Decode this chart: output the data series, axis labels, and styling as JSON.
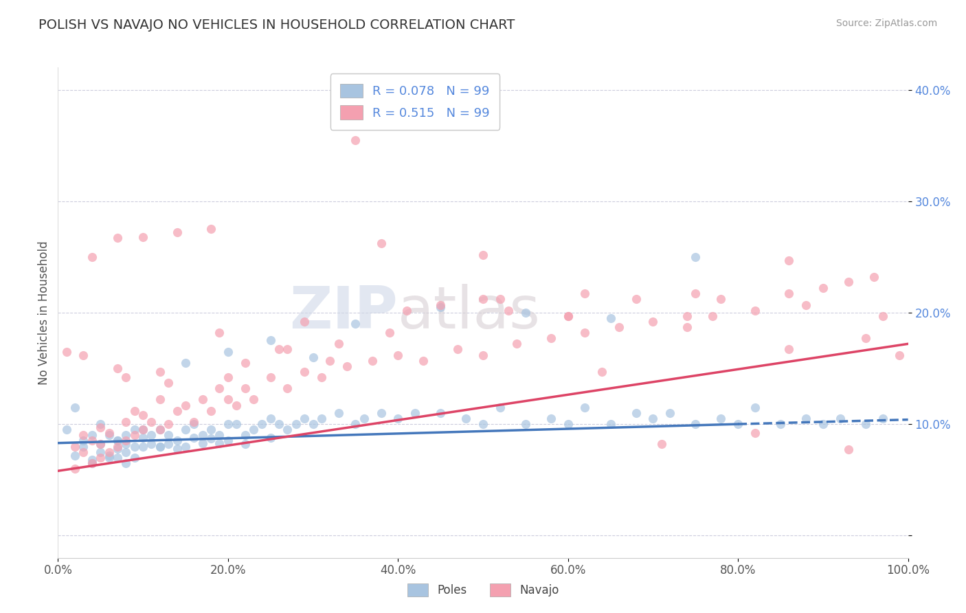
{
  "title": "POLISH VS NAVAJO NO VEHICLES IN HOUSEHOLD CORRELATION CHART",
  "source_text": "Source: ZipAtlas.com",
  "ylabel": "No Vehicles in Household",
  "xlim": [
    0.0,
    1.0
  ],
  "ylim": [
    -0.02,
    0.42
  ],
  "xtick_labels": [
    "0.0%",
    "20.0%",
    "40.0%",
    "60.0%",
    "80.0%",
    "100.0%"
  ],
  "xtick_vals": [
    0.0,
    0.2,
    0.4,
    0.6,
    0.8,
    1.0
  ],
  "ytick_vals": [
    0.0,
    0.1,
    0.2,
    0.3,
    0.4
  ],
  "ytick_labels": [
    "",
    "10.0%",
    "20.0%",
    "30.0%",
    "40.0%"
  ],
  "poles_color": "#a8c4e0",
  "navajo_color": "#f4a0b0",
  "poles_line_color": "#4477bb",
  "navajo_line_color": "#dd4466",
  "poles_R": 0.078,
  "poles_N": 99,
  "navajo_R": 0.515,
  "navajo_N": 99,
  "watermark_zip": "ZIP",
  "watermark_atlas": "atlas",
  "legend_label_poles": "Poles",
  "legend_label_navajo": "Navajo",
  "poles_line_x0": 0.0,
  "poles_line_y0": 0.083,
  "poles_line_x1": 0.8,
  "poles_line_y1": 0.1,
  "poles_line_dash_x0": 0.8,
  "poles_line_dash_y0": 0.1,
  "poles_line_dash_x1": 1.0,
  "poles_line_dash_y1": 0.104,
  "navajo_line_x0": 0.0,
  "navajo_line_y0": 0.058,
  "navajo_line_x1": 1.0,
  "navajo_line_y1": 0.172,
  "poles_scatter_x": [
    0.02,
    0.03,
    0.04,
    0.04,
    0.05,
    0.05,
    0.06,
    0.06,
    0.07,
    0.07,
    0.07,
    0.08,
    0.08,
    0.08,
    0.09,
    0.09,
    0.1,
    0.1,
    0.11,
    0.11,
    0.12,
    0.12,
    0.13,
    0.13,
    0.14,
    0.14,
    0.15,
    0.15,
    0.16,
    0.16,
    0.17,
    0.17,
    0.18,
    0.18,
    0.19,
    0.19,
    0.2,
    0.2,
    0.21,
    0.22,
    0.22,
    0.23,
    0.24,
    0.25,
    0.25,
    0.26,
    0.27,
    0.28,
    0.29,
    0.3,
    0.31,
    0.33,
    0.35,
    0.36,
    0.38,
    0.4,
    0.42,
    0.45,
    0.48,
    0.5,
    0.52,
    0.55,
    0.58,
    0.6,
    0.62,
    0.65,
    0.68,
    0.7,
    0.72,
    0.75,
    0.78,
    0.8,
    0.82,
    0.85,
    0.88,
    0.9,
    0.92,
    0.95,
    0.97,
    0.01,
    0.03,
    0.05,
    0.07,
    0.09,
    0.02,
    0.04,
    0.06,
    0.08,
    0.1,
    0.12,
    0.15,
    0.2,
    0.25,
    0.3,
    0.35,
    0.45,
    0.55,
    0.65,
    0.75
  ],
  "poles_scatter_y": [
    0.115,
    0.08,
    0.09,
    0.065,
    0.1,
    0.075,
    0.09,
    0.072,
    0.085,
    0.078,
    0.07,
    0.09,
    0.082,
    0.075,
    0.095,
    0.07,
    0.095,
    0.08,
    0.09,
    0.082,
    0.095,
    0.08,
    0.09,
    0.082,
    0.085,
    0.078,
    0.095,
    0.08,
    0.1,
    0.088,
    0.09,
    0.083,
    0.095,
    0.087,
    0.09,
    0.083,
    0.1,
    0.085,
    0.1,
    0.09,
    0.082,
    0.095,
    0.1,
    0.105,
    0.088,
    0.1,
    0.095,
    0.1,
    0.105,
    0.1,
    0.105,
    0.11,
    0.1,
    0.105,
    0.11,
    0.105,
    0.11,
    0.11,
    0.105,
    0.1,
    0.115,
    0.1,
    0.105,
    0.1,
    0.115,
    0.1,
    0.11,
    0.105,
    0.11,
    0.1,
    0.105,
    0.1,
    0.115,
    0.1,
    0.105,
    0.1,
    0.105,
    0.1,
    0.105,
    0.095,
    0.085,
    0.082,
    0.085,
    0.08,
    0.072,
    0.068,
    0.07,
    0.065,
    0.088,
    0.08,
    0.155,
    0.165,
    0.175,
    0.16,
    0.19,
    0.205,
    0.2,
    0.195,
    0.25
  ],
  "navajo_scatter_x": [
    0.01,
    0.02,
    0.02,
    0.03,
    0.03,
    0.04,
    0.04,
    0.05,
    0.05,
    0.06,
    0.06,
    0.07,
    0.07,
    0.08,
    0.08,
    0.09,
    0.09,
    0.1,
    0.1,
    0.11,
    0.12,
    0.12,
    0.13,
    0.14,
    0.15,
    0.16,
    0.17,
    0.18,
    0.19,
    0.2,
    0.21,
    0.22,
    0.23,
    0.25,
    0.27,
    0.29,
    0.31,
    0.34,
    0.37,
    0.4,
    0.43,
    0.47,
    0.5,
    0.54,
    0.58,
    0.62,
    0.66,
    0.7,
    0.74,
    0.78,
    0.82,
    0.86,
    0.9,
    0.93,
    0.96,
    0.99,
    0.04,
    0.07,
    0.1,
    0.14,
    0.18,
    0.22,
    0.27,
    0.32,
    0.38,
    0.45,
    0.52,
    0.6,
    0.68,
    0.77,
    0.86,
    0.95,
    0.03,
    0.08,
    0.13,
    0.19,
    0.26,
    0.33,
    0.41,
    0.5,
    0.6,
    0.71,
    0.82,
    0.93,
    0.05,
    0.12,
    0.2,
    0.29,
    0.39,
    0.5,
    0.62,
    0.74,
    0.86,
    0.97,
    0.35,
    0.75,
    0.88,
    0.53,
    0.64
  ],
  "navajo_scatter_y": [
    0.165,
    0.06,
    0.08,
    0.075,
    0.09,
    0.065,
    0.085,
    0.07,
    0.082,
    0.075,
    0.092,
    0.08,
    0.15,
    0.085,
    0.102,
    0.09,
    0.112,
    0.095,
    0.108,
    0.102,
    0.095,
    0.122,
    0.1,
    0.112,
    0.117,
    0.102,
    0.122,
    0.112,
    0.132,
    0.122,
    0.117,
    0.132,
    0.122,
    0.142,
    0.132,
    0.147,
    0.142,
    0.152,
    0.157,
    0.162,
    0.157,
    0.167,
    0.162,
    0.172,
    0.177,
    0.182,
    0.187,
    0.192,
    0.197,
    0.212,
    0.202,
    0.217,
    0.222,
    0.228,
    0.232,
    0.162,
    0.25,
    0.267,
    0.268,
    0.272,
    0.275,
    0.155,
    0.167,
    0.157,
    0.262,
    0.207,
    0.212,
    0.197,
    0.212,
    0.197,
    0.247,
    0.177,
    0.162,
    0.142,
    0.137,
    0.182,
    0.167,
    0.172,
    0.202,
    0.252,
    0.197,
    0.082,
    0.092,
    0.077,
    0.097,
    0.147,
    0.142,
    0.192,
    0.182,
    0.212,
    0.217,
    0.187,
    0.167,
    0.197,
    0.355,
    0.217,
    0.207,
    0.202,
    0.147
  ]
}
